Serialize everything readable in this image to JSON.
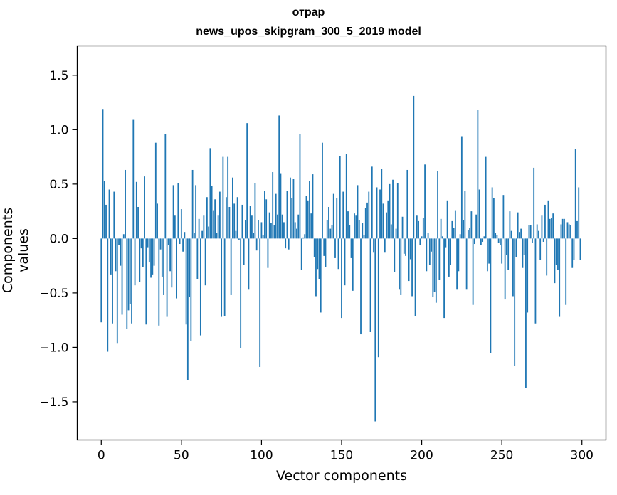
{
  "chart_data": {
    "type": "bar",
    "title": "отрар",
    "subtitle": "news_upos_skipgram_300_5_2019 model",
    "xlabel": "Vector components",
    "ylabel": "Components values",
    "xlim": [
      -15,
      315
    ],
    "ylim": [
      -1.85,
      1.77
    ],
    "xticks": [
      0,
      50,
      100,
      150,
      200,
      250,
      300
    ],
    "yticks": [
      -1.5,
      -1.0,
      -0.5,
      0.0,
      0.5,
      1.0,
      1.5
    ],
    "ytick_labels": [
      "−1.5",
      "−1.0",
      "−0.5",
      "0.0",
      "0.5",
      "1.0",
      "1.5"
    ],
    "grid": false,
    "bar_color": "#1f77b4",
    "x": "0..299",
    "values": [
      -0.77,
      1.19,
      0.53,
      0.31,
      -1.04,
      0.45,
      -0.33,
      -0.78,
      0.43,
      -0.3,
      -0.96,
      -0.06,
      -0.25,
      -0.7,
      0.04,
      0.63,
      -0.83,
      -0.66,
      -0.6,
      -0.78,
      1.09,
      -0.43,
      0.52,
      0.29,
      -0.4,
      -0.09,
      -0.26,
      0.57,
      -0.79,
      -0.08,
      -0.22,
      -0.36,
      -0.33,
      -0.25,
      0.88,
      0.32,
      -0.8,
      -0.1,
      -0.35,
      -0.52,
      0.96,
      -0.72,
      -0.06,
      -0.3,
      -0.45,
      0.49,
      0.21,
      -0.55,
      0.51,
      -0.05,
      0.27,
      -0.12,
      0.06,
      -0.79,
      -1.3,
      -0.54,
      -0.94,
      0.63,
      0.05,
      0.49,
      -0.37,
      0.18,
      -0.89,
      0.07,
      0.21,
      -0.43,
      0.38,
      0.11,
      0.83,
      0.48,
      0.26,
      0.36,
      0.05,
      0.21,
      0.43,
      -0.72,
      0.75,
      -0.71,
      0.38,
      0.75,
      0.29,
      -0.52,
      0.56,
      0.32,
      0.07,
      0.38,
      -0.01,
      -1.01,
      0.31,
      -0.24,
      0.17,
      1.06,
      -0.47,
      0.3,
      0.21,
      0.05,
      0.51,
      -0.11,
      0.17,
      -1.18,
      0.15,
      0.03,
      0.44,
      0.36,
      -0.27,
      0.24,
      0.14,
      0.61,
      0.12,
      0.41,
      0.22,
      1.13,
      0.6,
      0.22,
      0.15,
      -0.09,
      0.44,
      -0.1,
      0.56,
      0.37,
      0.55,
      0.15,
      0.09,
      0.22,
      0.96,
      -0.29,
      0.01,
      0.04,
      0.39,
      0.35,
      0.53,
      0.23,
      0.59,
      -0.17,
      -0.53,
      -0.28,
      -0.37,
      -0.68,
      0.88,
      -0.16,
      -0.26,
      0.17,
      0.29,
      0.09,
      0.12,
      0.41,
      -0.18,
      0.37,
      -0.28,
      0.76,
      -0.73,
      0.43,
      -0.43,
      0.78,
      0.25,
      0.12,
      -0.18,
      -0.48,
      0.23,
      0.21,
      0.49,
      0.17,
      -0.88,
      0.14,
      0.03,
      0.28,
      0.33,
      0.43,
      -0.86,
      0.66,
      -0.13,
      -1.68,
      0.47,
      -1.09,
      0.45,
      0.64,
      0.32,
      -0.13,
      0.24,
      0.35,
      0.5,
      0.13,
      0.54,
      -0.31,
      0.09,
      0.51,
      -0.47,
      -0.52,
      0.2,
      -0.14,
      -0.16,
      0.63,
      -0.39,
      -0.19,
      -0.53,
      1.31,
      -0.71,
      0.21,
      0.16,
      -0.06,
      0.02,
      0.19,
      0.68,
      -0.3,
      0.05,
      -0.24,
      -0.12,
      -0.54,
      -0.49,
      -0.59,
      0.62,
      -0.38,
      0.18,
      0.02,
      -0.73,
      -0.08,
      0.35,
      -0.35,
      -0.24,
      0.16,
      0.1,
      0.26,
      -0.47,
      -0.3,
      0.04,
      0.94,
      0.17,
      0.44,
      -0.47,
      0.08,
      0.1,
      0.25,
      -0.61,
      -0.05,
      0.22,
      1.18,
      0.45,
      -0.06,
      -0.03,
      0.02,
      0.75,
      -0.3,
      -0.23,
      -1.05,
      0.47,
      0.37,
      0.05,
      0.03,
      -0.04,
      -0.06,
      -0.23,
      0.4,
      -0.56,
      -0.15,
      -0.29,
      0.25,
      0.07,
      -0.53,
      -1.17,
      -0.17,
      0.24,
      0.06,
      0.09,
      -0.27,
      -0.15,
      -1.37,
      -0.68,
      0.12,
      0.12,
      -0.04,
      0.65,
      -0.78,
      0.13,
      0.07,
      -0.2,
      0.21,
      -0.03,
      0.31,
      -0.34,
      0.35,
      0.18,
      0.19,
      0.23,
      -0.41,
      -0.24,
      -0.29,
      -0.72,
      0.13,
      0.18,
      0.18,
      -0.61,
      0.15,
      0.13,
      0.12,
      -0.27,
      -0.2,
      0.82,
      0.16,
      0.47,
      -0.2
    ]
  }
}
